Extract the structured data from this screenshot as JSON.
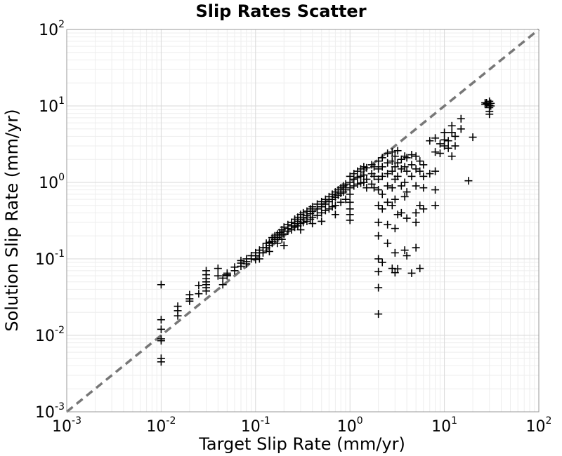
{
  "chart_data": {
    "type": "scatter",
    "title": "Slip Rates Scatter",
    "xlabel": "Target Slip Rate (mm/yr)",
    "ylabel": "Solution Slip Rate (mm/yr)",
    "xscale": "log",
    "yscale": "log",
    "xlim": [
      0.001,
      100
    ],
    "ylim": [
      0.001,
      100
    ],
    "grid": true,
    "marker": "plus",
    "marker_color": "#000000",
    "reference_line": {
      "style": "dashed",
      "color": "#777777",
      "x": [
        0.001,
        100
      ],
      "y": [
        0.001,
        100
      ]
    },
    "x_ticks": [
      {
        "base": "10",
        "exp": "-3",
        "value": 0.001
      },
      {
        "base": "10",
        "exp": "-2",
        "value": 0.01
      },
      {
        "base": "10",
        "exp": "-1",
        "value": 0.1
      },
      {
        "base": "10",
        "exp": "0",
        "value": 1
      },
      {
        "base": "10",
        "exp": "1",
        "value": 10
      },
      {
        "base": "10",
        "exp": "2",
        "value": 100
      }
    ],
    "y_ticks": [
      {
        "base": "10",
        "exp": "-3",
        "value": 0.001
      },
      {
        "base": "10",
        "exp": "-2",
        "value": 0.01
      },
      {
        "base": "10",
        "exp": "-1",
        "value": 0.1
      },
      {
        "base": "10",
        "exp": "0",
        "value": 1
      },
      {
        "base": "10",
        "exp": "1",
        "value": 10
      },
      {
        "base": "10",
        "exp": "2",
        "value": 100
      }
    ],
    "series": [
      {
        "points": [
          [
            0.01,
            0.046
          ],
          [
            0.01,
            0.016
          ],
          [
            0.01,
            0.012
          ],
          [
            0.01,
            0.009
          ],
          [
            0.01,
            0.0085
          ],
          [
            0.01,
            0.005
          ],
          [
            0.01,
            0.0045
          ],
          [
            0.015,
            0.024
          ],
          [
            0.015,
            0.021
          ],
          [
            0.015,
            0.018
          ],
          [
            0.02,
            0.034
          ],
          [
            0.02,
            0.03
          ],
          [
            0.02,
            0.028
          ],
          [
            0.025,
            0.045
          ],
          [
            0.025,
            0.035
          ],
          [
            0.03,
            0.07
          ],
          [
            0.03,
            0.062
          ],
          [
            0.03,
            0.055
          ],
          [
            0.03,
            0.05
          ],
          [
            0.03,
            0.046
          ],
          [
            0.03,
            0.042
          ],
          [
            0.03,
            0.038
          ],
          [
            0.04,
            0.075
          ],
          [
            0.04,
            0.06
          ],
          [
            0.045,
            0.056
          ],
          [
            0.045,
            0.046
          ],
          [
            0.05,
            0.065
          ],
          [
            0.05,
            0.062
          ],
          [
            0.05,
            0.06
          ],
          [
            0.06,
            0.078
          ],
          [
            0.06,
            0.07
          ],
          [
            0.07,
            0.095
          ],
          [
            0.07,
            0.088
          ],
          [
            0.07,
            0.08
          ],
          [
            0.08,
            0.1
          ],
          [
            0.08,
            0.092
          ],
          [
            0.08,
            0.086
          ],
          [
            0.09,
            0.11
          ],
          [
            0.09,
            0.1
          ],
          [
            0.1,
            0.12
          ],
          [
            0.1,
            0.11
          ],
          [
            0.1,
            0.098
          ],
          [
            0.11,
            0.13
          ],
          [
            0.11,
            0.12
          ],
          [
            0.11,
            0.1
          ],
          [
            0.12,
            0.14
          ],
          [
            0.12,
            0.12
          ],
          [
            0.13,
            0.16
          ],
          [
            0.13,
            0.14
          ],
          [
            0.14,
            0.165
          ],
          [
            0.14,
            0.15
          ],
          [
            0.14,
            0.125
          ],
          [
            0.15,
            0.19
          ],
          [
            0.15,
            0.17
          ],
          [
            0.15,
            0.16
          ],
          [
            0.16,
            0.2
          ],
          [
            0.16,
            0.18
          ],
          [
            0.17,
            0.21
          ],
          [
            0.17,
            0.19
          ],
          [
            0.17,
            0.16
          ],
          [
            0.18,
            0.22
          ],
          [
            0.18,
            0.2
          ],
          [
            0.19,
            0.24
          ],
          [
            0.19,
            0.21
          ],
          [
            0.19,
            0.18
          ],
          [
            0.2,
            0.26
          ],
          [
            0.2,
            0.23
          ],
          [
            0.2,
            0.21
          ],
          [
            0.2,
            0.15
          ],
          [
            0.22,
            0.28
          ],
          [
            0.22,
            0.25
          ],
          [
            0.22,
            0.23
          ],
          [
            0.24,
            0.3
          ],
          [
            0.24,
            0.27
          ],
          [
            0.24,
            0.24
          ],
          [
            0.26,
            0.33
          ],
          [
            0.26,
            0.29
          ],
          [
            0.26,
            0.26
          ],
          [
            0.28,
            0.35
          ],
          [
            0.28,
            0.31
          ],
          [
            0.28,
            0.27
          ],
          [
            0.3,
            0.38
          ],
          [
            0.3,
            0.33
          ],
          [
            0.3,
            0.29
          ],
          [
            0.3,
            0.24
          ],
          [
            0.32,
            0.4
          ],
          [
            0.32,
            0.35
          ],
          [
            0.32,
            0.3
          ],
          [
            0.35,
            0.42
          ],
          [
            0.35,
            0.37
          ],
          [
            0.35,
            0.31
          ],
          [
            0.38,
            0.45
          ],
          [
            0.38,
            0.39
          ],
          [
            0.38,
            0.33
          ],
          [
            0.4,
            0.48
          ],
          [
            0.4,
            0.42
          ],
          [
            0.4,
            0.35
          ],
          [
            0.4,
            0.29
          ],
          [
            0.45,
            0.52
          ],
          [
            0.45,
            0.45
          ],
          [
            0.45,
            0.37
          ],
          [
            0.5,
            0.56
          ],
          [
            0.5,
            0.48
          ],
          [
            0.5,
            0.4
          ],
          [
            0.5,
            0.31
          ],
          [
            0.55,
            0.6
          ],
          [
            0.55,
            0.52
          ],
          [
            0.55,
            0.43
          ],
          [
            0.6,
            0.65
          ],
          [
            0.6,
            0.56
          ],
          [
            0.6,
            0.45
          ],
          [
            0.65,
            0.7
          ],
          [
            0.65,
            0.6
          ],
          [
            0.65,
            0.48
          ],
          [
            0.7,
            0.75
          ],
          [
            0.7,
            0.64
          ],
          [
            0.7,
            0.5
          ],
          [
            0.7,
            0.38
          ],
          [
            0.75,
            0.8
          ],
          [
            0.75,
            0.68
          ],
          [
            0.8,
            0.85
          ],
          [
            0.8,
            0.72
          ],
          [
            0.8,
            0.55
          ],
          [
            0.85,
            0.9
          ],
          [
            0.85,
            0.75
          ],
          [
            0.9,
            0.95
          ],
          [
            0.9,
            0.8
          ],
          [
            0.9,
            0.6
          ],
          [
            1.0,
            1.2
          ],
          [
            1.0,
            1.0
          ],
          [
            1.0,
            0.85
          ],
          [
            1.0,
            0.7
          ],
          [
            1.0,
            0.55
          ],
          [
            1.0,
            0.45
          ],
          [
            1.0,
            0.38
          ],
          [
            1.0,
            0.32
          ],
          [
            1.1,
            1.3
          ],
          [
            1.1,
            1.1
          ],
          [
            1.1,
            0.9
          ],
          [
            1.2,
            1.4
          ],
          [
            1.2,
            1.15
          ],
          [
            1.2,
            0.95
          ],
          [
            1.3,
            1.5
          ],
          [
            1.3,
            1.2
          ],
          [
            1.3,
            0.98
          ],
          [
            1.4,
            1.6
          ],
          [
            1.4,
            1.25
          ],
          [
            1.4,
            1.0
          ],
          [
            1.5,
            1.55
          ],
          [
            1.5,
            1.1
          ],
          [
            1.5,
            0.85
          ],
          [
            1.7,
            1.7
          ],
          [
            1.7,
            1.3
          ],
          [
            1.7,
            0.95
          ],
          [
            1.8,
            1.6
          ],
          [
            1.8,
            1.2
          ],
          [
            1.8,
            0.85
          ],
          [
            2.0,
            1.9
          ],
          [
            2.0,
            1.5
          ],
          [
            2.0,
            1.1
          ],
          [
            2.0,
            0.8
          ],
          [
            2.0,
            0.5
          ],
          [
            2.0,
            0.3
          ],
          [
            2.0,
            0.2
          ],
          [
            2.0,
            0.1
          ],
          [
            2.0,
            0.068
          ],
          [
            2.0,
            0.042
          ],
          [
            2.0,
            0.019
          ],
          [
            2.2,
            2.1
          ],
          [
            2.2,
            1.6
          ],
          [
            2.2,
            1.2
          ],
          [
            2.2,
            0.7
          ],
          [
            2.2,
            0.45
          ],
          [
            2.2,
            0.09
          ],
          [
            2.5,
            2.4
          ],
          [
            2.5,
            1.8
          ],
          [
            2.5,
            1.3
          ],
          [
            2.5,
            0.9
          ],
          [
            2.5,
            0.55
          ],
          [
            2.5,
            0.28
          ],
          [
            2.5,
            0.16
          ],
          [
            2.8,
            2.5
          ],
          [
            2.8,
            1.9
          ],
          [
            2.8,
            1.4
          ],
          [
            2.8,
            0.85
          ],
          [
            2.8,
            0.5
          ],
          [
            2.8,
            0.075
          ],
          [
            3.0,
            2.2
          ],
          [
            3.0,
            1.6
          ],
          [
            3.0,
            1.1
          ],
          [
            3.0,
            0.6
          ],
          [
            3.0,
            0.25
          ],
          [
            3.0,
            0.12
          ],
          [
            3.0,
            0.066
          ],
          [
            3.2,
            2.6
          ],
          [
            3.2,
            1.8
          ],
          [
            3.2,
            1.2
          ],
          [
            3.2,
            0.38
          ],
          [
            3.2,
            0.074
          ],
          [
            3.5,
            2.0
          ],
          [
            3.5,
            1.5
          ],
          [
            3.5,
            0.9
          ],
          [
            3.5,
            0.4
          ],
          [
            3.8,
            2.2
          ],
          [
            3.8,
            1.6
          ],
          [
            3.8,
            1.0
          ],
          [
            3.8,
            0.65
          ],
          [
            3.8,
            0.13
          ],
          [
            4.0,
            2.1
          ],
          [
            4.0,
            1.4
          ],
          [
            4.0,
            0.75
          ],
          [
            4.0,
            0.34
          ],
          [
            4.0,
            0.11
          ],
          [
            4.5,
            2.3
          ],
          [
            4.5,
            1.7
          ],
          [
            4.5,
            1.2
          ],
          [
            4.5,
            0.065
          ],
          [
            5.0,
            2.2
          ],
          [
            5.0,
            1.5
          ],
          [
            5.0,
            0.9
          ],
          [
            5.0,
            0.4
          ],
          [
            5.0,
            0.3
          ],
          [
            5.0,
            0.14
          ],
          [
            5.5,
            1.9
          ],
          [
            5.5,
            1.4
          ],
          [
            5.5,
            0.5
          ],
          [
            5.5,
            0.075
          ],
          [
            6.0,
            1.7
          ],
          [
            6.0,
            1.2
          ],
          [
            6.0,
            0.85
          ],
          [
            6.0,
            0.45
          ],
          [
            7.0,
            3.5
          ],
          [
            7.0,
            1.3
          ],
          [
            8.0,
            3.8
          ],
          [
            8.0,
            2.5
          ],
          [
            8.0,
            1.4
          ],
          [
            8.0,
            0.8
          ],
          [
            8.0,
            0.5
          ],
          [
            9.0,
            3.2
          ],
          [
            9.0,
            2.4
          ],
          [
            10.0,
            4.5
          ],
          [
            10.0,
            3.6
          ],
          [
            10.0,
            3.0
          ],
          [
            11.0,
            3.5
          ],
          [
            11.0,
            2.8
          ],
          [
            12.0,
            5.5
          ],
          [
            12.0,
            4.5
          ],
          [
            12.0,
            2.2
          ],
          [
            13.0,
            4.0
          ],
          [
            13.0,
            3.0
          ],
          [
            15.0,
            6.8
          ],
          [
            15.0,
            5.0
          ],
          [
            18.0,
            1.05
          ],
          [
            20.0,
            3.9
          ],
          [
            27.0,
            11.0
          ],
          [
            27.0,
            10.5
          ],
          [
            28.0,
            11.0
          ],
          [
            28.0,
            10.8
          ],
          [
            30.0,
            11.5
          ],
          [
            30.0,
            10.2
          ],
          [
            30.0,
            9.5
          ],
          [
            30.0,
            8.5
          ],
          [
            30.0,
            7.8
          ],
          [
            31.0,
            10.8
          ],
          [
            31.0,
            10.0
          ]
        ]
      }
    ]
  }
}
